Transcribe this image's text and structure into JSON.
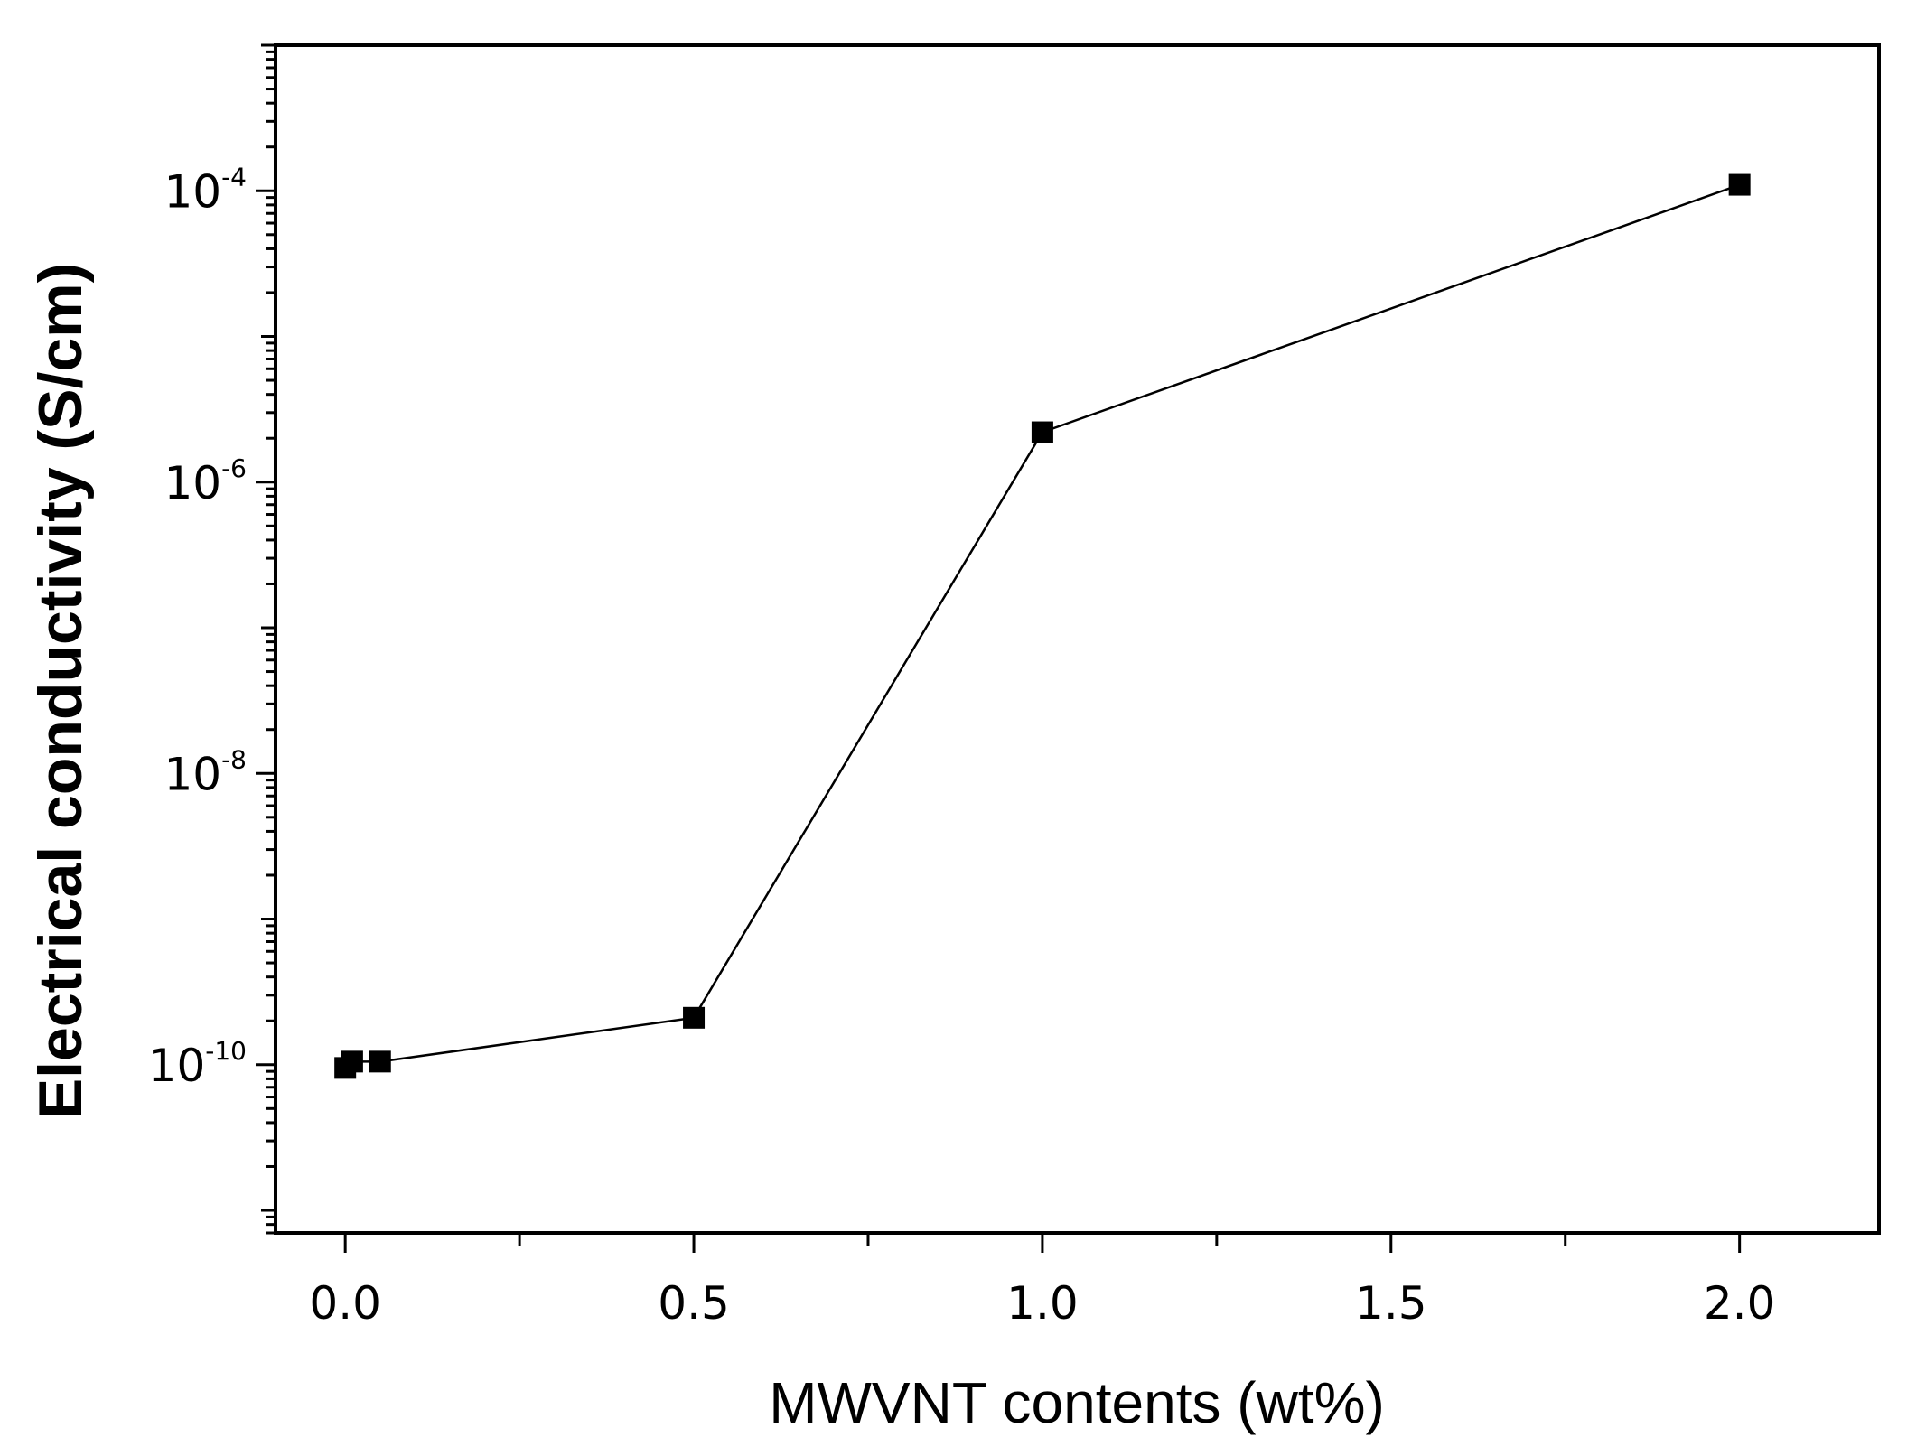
{
  "chart_data": {
    "type": "line",
    "title": "",
    "xlabel": "MWVNT contents (wt%)",
    "ylabel": "Electrical conductivity (S/cm)",
    "yscale": "log",
    "xlim": [
      -0.1,
      2.2
    ],
    "ylim": [
      7e-12,
      0.001
    ],
    "x_ticks": [
      {
        "value": 0.0,
        "label": "0.0"
      },
      {
        "value": 0.5,
        "label": "0.5"
      },
      {
        "value": 1.0,
        "label": "1.0"
      },
      {
        "value": 1.5,
        "label": "1.5"
      },
      {
        "value": 2.0,
        "label": "2.0"
      }
    ],
    "y_ticks": [
      {
        "value": 1e-10,
        "base": "10",
        "exp": "-10"
      },
      {
        "value": 1e-08,
        "base": "10",
        "exp": "-8"
      },
      {
        "value": 1e-06,
        "base": "10",
        "exp": "-6"
      },
      {
        "value": 0.0001,
        "base": "10",
        "exp": "-4"
      }
    ],
    "grid": false,
    "legend": "none",
    "series": [
      {
        "marker": "square",
        "color": "#000000",
        "x": [
          0.0,
          0.01,
          0.05,
          0.5,
          1.0,
          2.0
        ],
        "y": [
          9.5e-11,
          1.05e-10,
          1.05e-10,
          2.1e-10,
          2.2e-06,
          0.00011
        ]
      }
    ]
  }
}
